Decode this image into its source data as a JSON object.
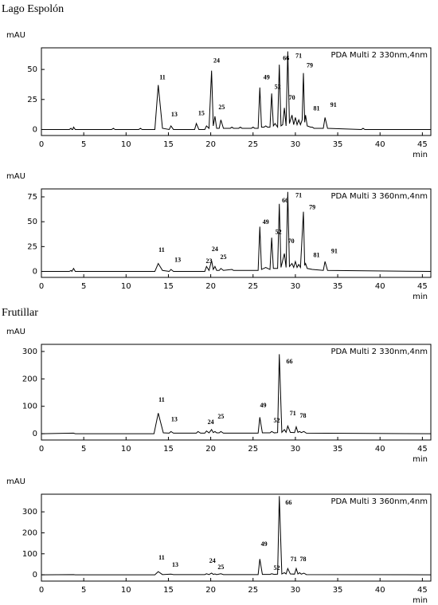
{
  "sections": [
    "Lago Espolón",
    "Frutillar"
  ],
  "chart_data": [
    {
      "type": "line",
      "label": "PDA Multi 2 330nm,4nm",
      "ylabel": "mAU",
      "xlabel": "min",
      "color": "#000000",
      "xlim": [
        0,
        46
      ],
      "xticks": [
        0,
        5,
        10,
        15,
        20,
        25,
        30,
        35,
        40,
        45
      ],
      "ylim": [
        -5,
        68
      ],
      "yticks": [
        0,
        25,
        50
      ],
      "x": [
        0,
        3.3,
        3.5,
        3.6,
        3.7,
        3.8,
        4.0,
        8.3,
        8.5,
        8.7,
        11.5,
        11.7,
        11.9,
        13.4,
        13.8,
        14.3,
        15.1,
        15.3,
        15.6,
        18.1,
        18.3,
        18.6,
        19.3,
        19.5,
        19.8,
        20.1,
        20.3,
        20.5,
        20.7,
        21.0,
        21.2,
        21.5,
        22.3,
        22.5,
        22.7,
        23.3,
        23.5,
        23.7,
        24.8,
        25.0,
        25.2,
        25.6,
        25.8,
        26.0,
        26.3,
        26.5,
        26.7,
        27.0,
        27.2,
        27.4,
        27.6,
        27.9,
        28.1,
        28.3,
        28.5,
        28.7,
        28.9,
        29.1,
        29.3,
        29.6,
        29.8,
        30.0,
        30.2,
        30.4,
        30.6,
        30.8,
        30.95,
        31.1,
        31.2,
        31.4,
        31.8,
        32.0,
        32.2,
        33.3,
        33.5,
        33.8,
        37.8,
        38.0,
        38.2,
        46
      ],
      "values": [
        0,
        0,
        1,
        0,
        0,
        2,
        0,
        0,
        1,
        0,
        0,
        1,
        0,
        0,
        37,
        1,
        0,
        3,
        0,
        0,
        5,
        0,
        0,
        3,
        1,
        49,
        3,
        11,
        1,
        1,
        8,
        1,
        1,
        2,
        1,
        1,
        2,
        1,
        1,
        2,
        1,
        1,
        35,
        2,
        2,
        3,
        2,
        2,
        30,
        3,
        5,
        2,
        54,
        3,
        4,
        18,
        3,
        65,
        5,
        12,
        4,
        10,
        4,
        8,
        4,
        8,
        47,
        6,
        12,
        3,
        2,
        2,
        1,
        1,
        10,
        1,
        0,
        1,
        0,
        0
      ],
      "annotations": [
        {
          "text": "11",
          "x": 14.3,
          "y": 43
        },
        {
          "text": "13",
          "x": 15.7,
          "y": 12
        },
        {
          "text": "15",
          "x": 18.9,
          "y": 13
        },
        {
          "text": "24",
          "x": 20.7,
          "y": 57
        },
        {
          "text": "25",
          "x": 21.3,
          "y": 18
        },
        {
          "text": "49",
          "x": 26.6,
          "y": 43
        },
        {
          "text": "52",
          "x": 27.9,
          "y": 35
        },
        {
          "text": "66",
          "x": 28.9,
          "y": 59
        },
        {
          "text": "70",
          "x": 29.6,
          "y": 26
        },
        {
          "text": "71",
          "x": 30.4,
          "y": 61
        },
        {
          "text": "79",
          "x": 31.7,
          "y": 53
        },
        {
          "text": "81",
          "x": 32.5,
          "y": 17
        },
        {
          "text": "91",
          "x": 34.5,
          "y": 20
        }
      ]
    },
    {
      "type": "line",
      "label": "PDA Multi 3 360nm,4nm",
      "ylabel": "mAU",
      "xlabel": "min",
      "color": "#000000",
      "xlim": [
        0,
        46
      ],
      "xticks": [
        0,
        5,
        10,
        15,
        20,
        25,
        30,
        35,
        40,
        45
      ],
      "ylim": [
        -6,
        83
      ],
      "yticks": [
        0,
        25,
        50,
        75
      ],
      "x": [
        0,
        3.3,
        3.5,
        3.6,
        3.8,
        4.0,
        13.4,
        13.8,
        14.3,
        15.1,
        15.3,
        15.6,
        19.3,
        19.5,
        19.8,
        20.1,
        20.3,
        20.5,
        20.7,
        21.0,
        21.2,
        21.5,
        22.5,
        22.7,
        25.6,
        25.8,
        26.0,
        26.5,
        27.0,
        27.2,
        27.4,
        27.9,
        28.1,
        28.3,
        28.7,
        28.9,
        29.1,
        29.3,
        29.6,
        29.8,
        30.0,
        30.2,
        30.4,
        30.6,
        30.95,
        31.1,
        31.2,
        31.4,
        32.0,
        33.3,
        33.5,
        33.8,
        46
      ],
      "values": [
        0,
        0,
        1,
        0,
        3,
        0,
        0,
        8,
        1,
        0,
        2,
        0,
        0,
        5,
        1,
        11,
        2,
        5,
        1,
        1,
        3,
        1,
        2,
        1,
        1,
        45,
        2,
        4,
        2,
        34,
        3,
        3,
        68,
        4,
        18,
        4,
        80,
        5,
        8,
        4,
        10,
        4,
        7,
        4,
        60,
        6,
        8,
        3,
        2,
        1,
        10,
        1,
        0
      ],
      "annotations": [
        {
          "text": "11",
          "x": 14.2,
          "y": 21
        },
        {
          "text": "13",
          "x": 16.1,
          "y": 11
        },
        {
          "text": "23",
          "x": 19.8,
          "y": 10
        },
        {
          "text": "24",
          "x": 20.5,
          "y": 22
        },
        {
          "text": "25",
          "x": 21.5,
          "y": 14
        },
        {
          "text": "49",
          "x": 26.5,
          "y": 49
        },
        {
          "text": "52",
          "x": 28.0,
          "y": 39
        },
        {
          "text": "66",
          "x": 28.8,
          "y": 71
        },
        {
          "text": "70",
          "x": 29.5,
          "y": 30
        },
        {
          "text": "71",
          "x": 30.4,
          "y": 76
        },
        {
          "text": "79",
          "x": 32.0,
          "y": 64
        },
        {
          "text": "81",
          "x": 32.5,
          "y": 16
        },
        {
          "text": "91",
          "x": 34.6,
          "y": 20
        }
      ]
    },
    {
      "type": "line",
      "label": "PDA Multi 2 330nm,4nm",
      "ylabel": "mAU",
      "xlabel": "min",
      "color": "#000000",
      "xlim": [
        0,
        46
      ],
      "xticks": [
        0,
        5,
        10,
        15,
        20,
        25,
        30,
        35,
        40,
        45
      ],
      "ylim": [
        -23,
        326
      ],
      "yticks": [
        0,
        100,
        200,
        300
      ],
      "x": [
        0,
        3.8,
        4.0,
        13.3,
        13.8,
        14.4,
        15.1,
        15.3,
        15.6,
        18.3,
        18.5,
        18.8,
        19.3,
        19.5,
        19.8,
        20.1,
        20.3,
        20.5,
        20.7,
        21.0,
        21.2,
        21.5,
        25.6,
        25.8,
        26.1,
        27.0,
        27.2,
        27.5,
        27.9,
        28.1,
        28.4,
        28.7,
        28.9,
        29.1,
        29.4,
        29.9,
        30.1,
        30.3,
        30.5,
        30.7,
        31.0,
        31.3,
        46
      ],
      "values": [
        0,
        2,
        0,
        0,
        75,
        3,
        2,
        8,
        2,
        2,
        8,
        2,
        2,
        10,
        3,
        15,
        4,
        8,
        3,
        3,
        8,
        2,
        2,
        60,
        3,
        3,
        8,
        3,
        4,
        290,
        5,
        15,
        5,
        28,
        5,
        4,
        25,
        5,
        8,
        4,
        8,
        2,
        0
      ],
      "annotations": [
        {
          "text": "11",
          "x": 14.2,
          "y": 122
        },
        {
          "text": "13",
          "x": 15.7,
          "y": 50
        },
        {
          "text": "24",
          "x": 20.0,
          "y": 41
        },
        {
          "text": "25",
          "x": 21.2,
          "y": 61
        },
        {
          "text": "49",
          "x": 26.2,
          "y": 102
        },
        {
          "text": "52",
          "x": 27.8,
          "y": 47
        },
        {
          "text": "66",
          "x": 29.3,
          "y": 262
        },
        {
          "text": "71",
          "x": 29.7,
          "y": 73
        },
        {
          "text": "78",
          "x": 30.9,
          "y": 64
        }
      ]
    },
    {
      "type": "line",
      "label": "PDA Multi 3 360nm,4nm",
      "ylabel": "mAU",
      "xlabel": "min",
      "color": "#000000",
      "xlim": [
        0,
        46
      ],
      "xticks": [
        0,
        5,
        10,
        15,
        20,
        25,
        30,
        35,
        40,
        45
      ],
      "ylim": [
        -30,
        384
      ],
      "yticks": [
        0,
        100,
        200,
        300
      ],
      "x": [
        0,
        3.8,
        4.0,
        13.4,
        13.8,
        14.3,
        15.3,
        15.6,
        19.3,
        19.5,
        19.8,
        20.1,
        20.3,
        20.5,
        20.7,
        21.2,
        21.5,
        25.6,
        25.8,
        26.1,
        27.0,
        27.2,
        27.5,
        27.9,
        28.1,
        28.4,
        28.7,
        28.9,
        29.1,
        29.4,
        29.9,
        30.1,
        30.3,
        30.5,
        30.7,
        31.0,
        31.3,
        46
      ],
      "values": [
        0,
        1,
        0,
        0,
        15,
        1,
        3,
        1,
        1,
        5,
        1,
        8,
        2,
        4,
        1,
        5,
        1,
        1,
        75,
        2,
        2,
        5,
        2,
        3,
        375,
        4,
        10,
        4,
        30,
        4,
        3,
        30,
        4,
        10,
        3,
        8,
        1,
        0
      ],
      "annotations": [
        {
          "text": "11",
          "x": 14.2,
          "y": 80
        },
        {
          "text": "13",
          "x": 15.8,
          "y": 46
        },
        {
          "text": "24",
          "x": 20.2,
          "y": 65
        },
        {
          "text": "25",
          "x": 21.2,
          "y": 34
        },
        {
          "text": "49",
          "x": 26.3,
          "y": 144
        },
        {
          "text": "52",
          "x": 27.8,
          "y": 30
        },
        {
          "text": "66",
          "x": 29.2,
          "y": 342
        },
        {
          "text": "71",
          "x": 29.8,
          "y": 72
        },
        {
          "text": "78",
          "x": 30.9,
          "y": 72
        }
      ]
    }
  ]
}
